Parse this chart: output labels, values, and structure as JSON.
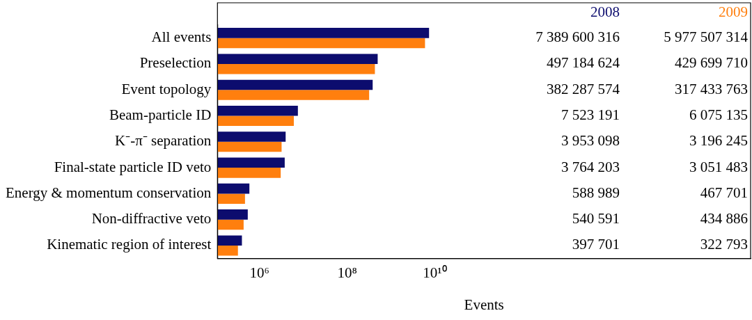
{
  "chart_data": {
    "type": "bar",
    "orientation": "horizontal",
    "xlabel": "Events",
    "log": "x",
    "categories": [
      "All events",
      "Preselection",
      "Event topology",
      "Beam-particle ID",
      "K⁻-π⁻ separation",
      "Final-state particle ID veto",
      "Energy & momentum conservation",
      "Non-diffractive veto",
      "Kinematic region of interest"
    ],
    "series": [
      {
        "name": "2008",
        "color": "#0c0c6e",
        "values": [
          7389600316,
          497184624,
          382287574,
          7523191,
          3953098,
          3764203,
          588989,
          540591,
          397701
        ],
        "value_labels": [
          "7 389 600 316",
          "497 184 624",
          "382 287 574",
          "7 523 191",
          "3 953 098",
          "3 764 203",
          "588 989",
          "540 591",
          "397 701"
        ]
      },
      {
        "name": "2009",
        "color": "#ff7f0e",
        "values": [
          5977507314,
          429699710,
          317433763,
          6075135,
          3196245,
          3051483,
          467701,
          434886,
          322793
        ],
        "value_labels": [
          "5 977 507 314",
          "429 699 710",
          "317 433 763",
          "6 075 135",
          "3 196 245",
          "3 051 483",
          "467 701",
          "434 886",
          "322 793"
        ]
      }
    ],
    "xlim": [
      110000,
      160000000000000000
    ],
    "xticks": [
      {
        "value": 1000000,
        "label": "10⁶"
      },
      {
        "value": 100000000,
        "label": "10⁸"
      },
      {
        "value": 10000000000,
        "label": "10¹⁰"
      }
    ],
    "grid": false,
    "legend": false
  }
}
